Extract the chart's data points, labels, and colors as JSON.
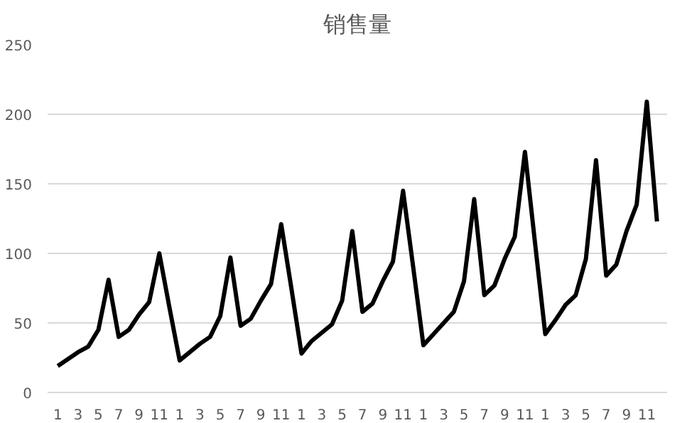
{
  "chart_data": {
    "type": "line",
    "title": "销售量",
    "categories": [
      "1",
      null,
      "3",
      null,
      "5",
      null,
      "7",
      null,
      "9",
      null,
      "11",
      null,
      "1",
      null,
      "3",
      null,
      "5",
      null,
      "7",
      null,
      "9",
      null,
      "11",
      null,
      "1",
      null,
      "3",
      null,
      "5",
      null,
      "7",
      null,
      "9",
      null,
      "11",
      null,
      "1",
      null,
      "3",
      null,
      "5",
      null,
      "7",
      null,
      "9",
      null,
      "11",
      null,
      "1",
      null,
      "3",
      null,
      "5",
      null,
      "7",
      null,
      "9",
      null,
      "11",
      null
    ],
    "series": [
      {
        "color": "#000000",
        "values": [
          19,
          24,
          29,
          33,
          45,
          81,
          40,
          45,
          56,
          65,
          100,
          61,
          23,
          29,
          35,
          40,
          55,
          97,
          48,
          53,
          66,
          78,
          121,
          75,
          28,
          37,
          43,
          49,
          66,
          116,
          58,
          64,
          80,
          94,
          145,
          90,
          34,
          42,
          50,
          58,
          80,
          139,
          70,
          77,
          96,
          112,
          173,
          107,
          42,
          52,
          63,
          70,
          96,
          167,
          84,
          92,
          116,
          135,
          209,
          123
        ]
      }
    ],
    "ylim": [
      0,
      250
    ],
    "yticks": [
      0,
      50,
      100,
      150,
      200,
      250
    ],
    "grid": "y",
    "marker": "none",
    "line_style": "solid"
  }
}
